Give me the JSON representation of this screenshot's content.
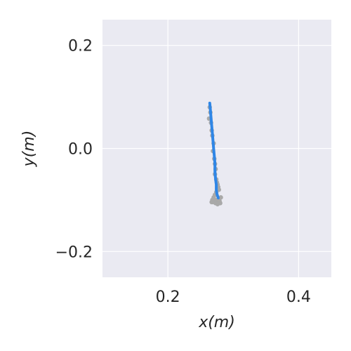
{
  "chart_data": {
    "type": "scatter",
    "xlabel": "x(m)",
    "ylabel": "y(m)",
    "xlim": [
      0.1,
      0.45
    ],
    "ylim": [
      -0.25,
      0.25
    ],
    "x_ticks": [
      0.2,
      0.4
    ],
    "x_tick_labels": [
      "0.2",
      "0.4"
    ],
    "y_ticks": [
      0.2,
      0.0,
      -0.2
    ],
    "y_tick_labels": [
      "0.2",
      "0.0",
      "−0.2"
    ],
    "grid": true,
    "colors": {
      "background": "#eaeaf2",
      "grid": "#ffffff",
      "trajectory": "#2f86e6",
      "scatter": "#a9a9a9"
    },
    "series": [
      {
        "kind": "line",
        "x": [
          0.264,
          0.265,
          0.266,
          0.267,
          0.268,
          0.269,
          0.27,
          0.271,
          0.272,
          0.272,
          0.273,
          0.274,
          0.274,
          0.275,
          0.276,
          0.277
        ],
        "y": [
          0.088,
          0.075,
          0.06,
          0.045,
          0.03,
          0.015,
          0.0,
          -0.015,
          -0.03,
          -0.045,
          -0.06,
          -0.07,
          -0.08,
          -0.088,
          -0.092,
          -0.096
        ]
      },
      {
        "kind": "scatter",
        "x": [
          0.264,
          0.265,
          0.263,
          0.266,
          0.267,
          0.268,
          0.27,
          0.269,
          0.271,
          0.272,
          0.273,
          0.272,
          0.274,
          0.275,
          0.276,
          0.277,
          0.278,
          0.274,
          0.272,
          0.27,
          0.268,
          0.267,
          0.275,
          0.279,
          0.28,
          0.276,
          0.273,
          0.271,
          0.281,
          0.269
        ],
        "y": [
          0.08,
          0.07,
          0.058,
          0.05,
          0.035,
          0.025,
          0.01,
          -0.005,
          -0.02,
          -0.03,
          -0.04,
          -0.05,
          -0.06,
          -0.066,
          -0.07,
          -0.075,
          -0.08,
          -0.085,
          -0.09,
          -0.095,
          -0.1,
          -0.104,
          -0.1,
          -0.102,
          -0.106,
          -0.108,
          -0.106,
          -0.1,
          -0.095,
          -0.104
        ]
      }
    ]
  }
}
